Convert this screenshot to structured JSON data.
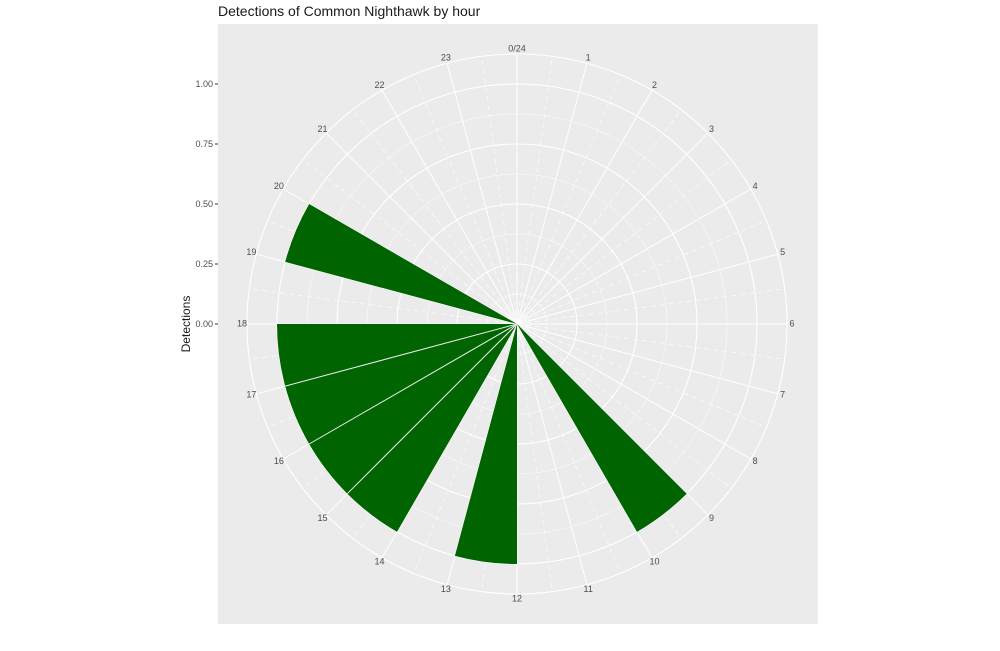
{
  "chart_data": {
    "type": "bar",
    "coord": "polar",
    "title": "Detections of Common Nighthawk by hour",
    "ylabel": "Detections",
    "xlabel": "",
    "x_tick_labels": [
      "0/24",
      "1",
      "2",
      "3",
      "4",
      "5",
      "6",
      "7",
      "8",
      "9",
      "10",
      "11",
      "12",
      "13",
      "14",
      "15",
      "16",
      "17",
      "18",
      "19",
      "20",
      "21",
      "22",
      "23"
    ],
    "y_tick_labels": [
      "0.00",
      "0.25",
      "0.50",
      "0.75",
      "1.00"
    ],
    "y_ticks": [
      0,
      0.25,
      0.5,
      0.75,
      1.0
    ],
    "ylim": [
      0,
      1.0
    ],
    "categories": [
      9,
      12,
      14,
      15,
      16,
      17,
      19
    ],
    "values": [
      1,
      1,
      1,
      1,
      1,
      1,
      1
    ],
    "bar_color": "#006400",
    "panel_color": "#ebebeb",
    "grid": true
  }
}
